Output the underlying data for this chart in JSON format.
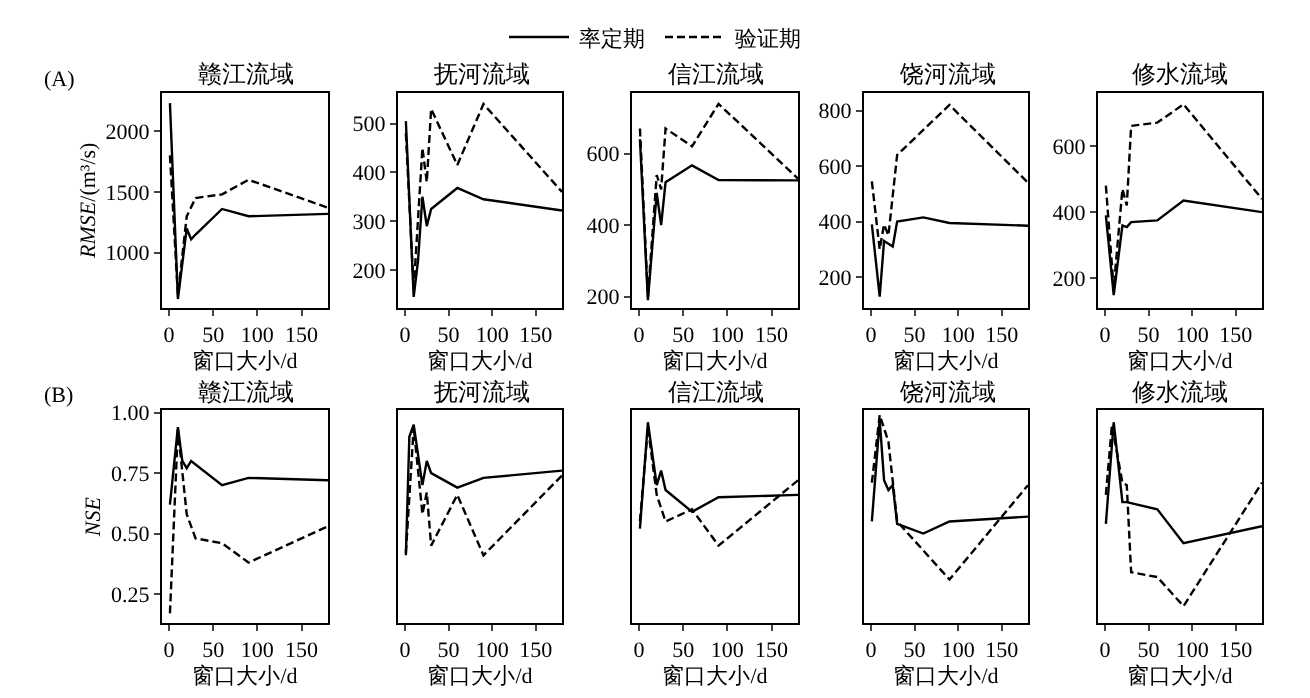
{
  "chart_data": [
    {
      "type": "line",
      "title": "赣江流域",
      "xlabel": "窗口大小/d",
      "ylabel": "RMSE/(m³/s)",
      "annotations": [
        "(A)"
      ],
      "legend": "top",
      "xlim": [
        -8,
        180
      ],
      "xticks": [
        0,
        50,
        100,
        150
      ],
      "ylim": [
        549,
        2315
      ],
      "yticks": [
        1000,
        1500,
        2000
      ],
      "series": [
        {
          "name": "率定期",
          "color": "#000000",
          "line_style": "solid",
          "x": [
            1,
            10,
            20,
            25,
            30,
            60,
            90,
            180
          ],
          "values": [
            2230,
            620,
            1200,
            1110,
            1150,
            1360,
            1300,
            1320
          ]
        },
        {
          "name": "验证期",
          "color": "#000000",
          "line_style": "dashed",
          "x": [
            1,
            10,
            20,
            30,
            60,
            90,
            180
          ],
          "values": [
            1800,
            650,
            1300,
            1450,
            1480,
            1600,
            1370
          ]
        }
      ]
    },
    {
      "type": "line",
      "title": "抚河流域",
      "xlabel": "窗口大小/d",
      "xlim": [
        -8,
        180
      ],
      "xticks": [
        0,
        50,
        100,
        150
      ],
      "ylim": [
        123,
        563
      ],
      "yticks": [
        200,
        300,
        400,
        500
      ],
      "series": [
        {
          "color": "#000000",
          "line_style": "solid",
          "x": [
            1,
            10,
            15,
            20,
            25,
            30,
            60,
            90,
            180
          ],
          "values": [
            505,
            145,
            220,
            350,
            290,
            325,
            368,
            345,
            322
          ]
        },
        {
          "color": "#000000",
          "line_style": "dashed",
          "x": [
            1,
            10,
            20,
            25,
            30,
            60,
            90,
            180
          ],
          "values": [
            480,
            160,
            450,
            380,
            530,
            415,
            540,
            360
          ]
        }
      ]
    },
    {
      "type": "line",
      "title": "信江流域",
      "xlabel": "窗口大小/d",
      "xlim": [
        -8,
        180
      ],
      "xticks": [
        0,
        50,
        100,
        150
      ],
      "ylim": [
        169,
        770
      ],
      "yticks": [
        200,
        400,
        600
      ],
      "series": [
        {
          "color": "#000000",
          "line_style": "solid",
          "x": [
            1,
            10,
            20,
            25,
            30,
            60,
            90,
            180
          ],
          "values": [
            640,
            190,
            490,
            400,
            520,
            567,
            526,
            525
          ]
        },
        {
          "color": "#000000",
          "line_style": "dashed",
          "x": [
            1,
            10,
            20,
            25,
            30,
            60,
            90,
            180
          ],
          "values": [
            670,
            200,
            540,
            500,
            670,
            620,
            739,
            530
          ]
        }
      ]
    },
    {
      "type": "line",
      "title": "饶河流域",
      "xlabel": "窗口大小/d",
      "xlim": [
        -8,
        180
      ],
      "xticks": [
        0,
        50,
        100,
        150
      ],
      "ylim": [
        90,
        864
      ],
      "yticks": [
        200,
        400,
        600,
        800
      ],
      "series": [
        {
          "color": "#000000",
          "line_style": "solid",
          "x": [
            1,
            10,
            15,
            20,
            25,
            30,
            60,
            90,
            180
          ],
          "values": [
            390,
            130,
            330,
            320,
            310,
            400,
            415,
            395,
            385
          ]
        },
        {
          "color": "#000000",
          "line_style": "dashed",
          "x": [
            1,
            10,
            15,
            20,
            30,
            90,
            180
          ],
          "values": [
            545,
            300,
            390,
            350,
            640,
            820,
            540
          ]
        }
      ]
    },
    {
      "type": "line",
      "title": "修水流域",
      "xlabel": "窗口大小/d",
      "xlim": [
        -8,
        180
      ],
      "xticks": [
        0,
        50,
        100,
        150
      ],
      "ylim": [
        112,
        760
      ],
      "yticks": [
        200,
        400,
        600
      ],
      "series": [
        {
          "color": "#000000",
          "line_style": "solid",
          "x": [
            1,
            10,
            20,
            25,
            30,
            60,
            90,
            180
          ],
          "values": [
            390,
            150,
            360,
            355,
            370,
            375,
            435,
            400
          ]
        },
        {
          "color": "#000000",
          "line_style": "dashed",
          "x": [
            1,
            10,
            20,
            25,
            30,
            60,
            90,
            180
          ],
          "values": [
            480,
            170,
            470,
            420,
            660,
            670,
            725,
            440
          ]
        }
      ]
    },
    {
      "type": "line",
      "title": "赣江流域",
      "xlabel": "窗口大小/d",
      "ylabel": "NSE",
      "annotations": [
        "(B)"
      ],
      "xlim": [
        -8,
        180
      ],
      "xticks": [
        0,
        50,
        100,
        150
      ],
      "ylim": [
        0.13,
        1.01
      ],
      "yticks": [
        {
          "value": 0.25,
          "label": "0.25"
        },
        {
          "value": 0.5,
          "label": "0.50"
        },
        {
          "value": 0.75,
          "label": "0.75"
        },
        {
          "value": 1.0,
          "label": "1.00"
        }
      ],
      "series": [
        {
          "color": "#000000",
          "line_style": "solid",
          "x": [
            1,
            10,
            15,
            20,
            25,
            60,
            90,
            180
          ],
          "values": [
            0.62,
            0.94,
            0.8,
            0.77,
            0.8,
            0.7,
            0.73,
            0.72
          ]
        },
        {
          "color": "#000000",
          "line_style": "dashed",
          "x": [
            1,
            10,
            20,
            30,
            60,
            90,
            180
          ],
          "values": [
            0.17,
            0.93,
            0.58,
            0.48,
            0.46,
            0.38,
            0.53
          ]
        }
      ]
    },
    {
      "type": "line",
      "title": "抚河流域",
      "xlabel": "窗口大小/d",
      "tick_labels": "x",
      "xlim": [
        -8,
        180
      ],
      "xticks": [
        0,
        50,
        100,
        150
      ],
      "ylim": [
        0.13,
        1.01
      ],
      "series": [
        {
          "color": "#000000",
          "line_style": "solid",
          "x": [
            1,
            5,
            10,
            20,
            25,
            30,
            60,
            90,
            180
          ],
          "values": [
            0.41,
            0.9,
            0.95,
            0.7,
            0.8,
            0.75,
            0.69,
            0.73,
            0.76
          ]
        },
        {
          "color": "#000000",
          "line_style": "dashed",
          "x": [
            1,
            10,
            20,
            25,
            30,
            60,
            90,
            180
          ],
          "values": [
            0.42,
            0.94,
            0.58,
            0.67,
            0.45,
            0.66,
            0.41,
            0.74
          ]
        }
      ]
    },
    {
      "type": "line",
      "title": "信江流域",
      "xlabel": "窗口大小/d",
      "tick_labels": "x",
      "xlim": [
        -8,
        180
      ],
      "xticks": [
        0,
        50,
        100,
        150
      ],
      "ylim": [
        0.13,
        1.01
      ],
      "series": [
        {
          "color": "#000000",
          "line_style": "solid",
          "x": [
            1,
            10,
            20,
            25,
            30,
            60,
            90,
            180
          ],
          "values": [
            0.52,
            0.96,
            0.7,
            0.76,
            0.68,
            0.59,
            0.65,
            0.66
          ]
        },
        {
          "color": "#000000",
          "line_style": "dashed",
          "x": [
            1,
            10,
            20,
            30,
            60,
            90,
            180
          ],
          "values": [
            0.55,
            0.94,
            0.66,
            0.55,
            0.6,
            0.45,
            0.72
          ]
        }
      ]
    },
    {
      "type": "line",
      "title": "饶河流域",
      "xlabel": "窗口大小/d",
      "tick_labels": "x",
      "xlim": [
        -8,
        180
      ],
      "xticks": [
        0,
        50,
        100,
        150
      ],
      "ylim": [
        0.13,
        1.01
      ],
      "series": [
        {
          "color": "#000000",
          "line_style": "solid",
          "x": [
            1,
            10,
            15,
            20,
            25,
            30,
            60,
            90,
            180
          ],
          "values": [
            0.55,
            0.97,
            0.72,
            0.68,
            0.7,
            0.54,
            0.5,
            0.55,
            0.57
          ]
        },
        {
          "color": "#000000",
          "line_style": "dashed",
          "x": [
            1,
            10,
            20,
            30,
            90,
            180
          ],
          "values": [
            0.71,
            0.99,
            0.88,
            0.55,
            0.31,
            0.7
          ]
        }
      ]
    },
    {
      "type": "line",
      "title": "修水流域",
      "xlabel": "窗口大小/d",
      "tick_labels": "x",
      "xlim": [
        -8,
        180
      ],
      "xticks": [
        0,
        50,
        100,
        150
      ],
      "ylim": [
        0.13,
        1.01
      ],
      "series": [
        {
          "color": "#000000",
          "line_style": "solid",
          "x": [
            1,
            10,
            20,
            25,
            60,
            90,
            180
          ],
          "values": [
            0.54,
            0.96,
            0.63,
            0.63,
            0.6,
            0.46,
            0.53
          ]
        },
        {
          "color": "#000000",
          "line_style": "dashed",
          "x": [
            1,
            8,
            20,
            25,
            30,
            60,
            90,
            180
          ],
          "values": [
            0.66,
            0.95,
            0.71,
            0.7,
            0.34,
            0.32,
            0.2,
            0.71
          ]
        }
      ]
    }
  ]
}
